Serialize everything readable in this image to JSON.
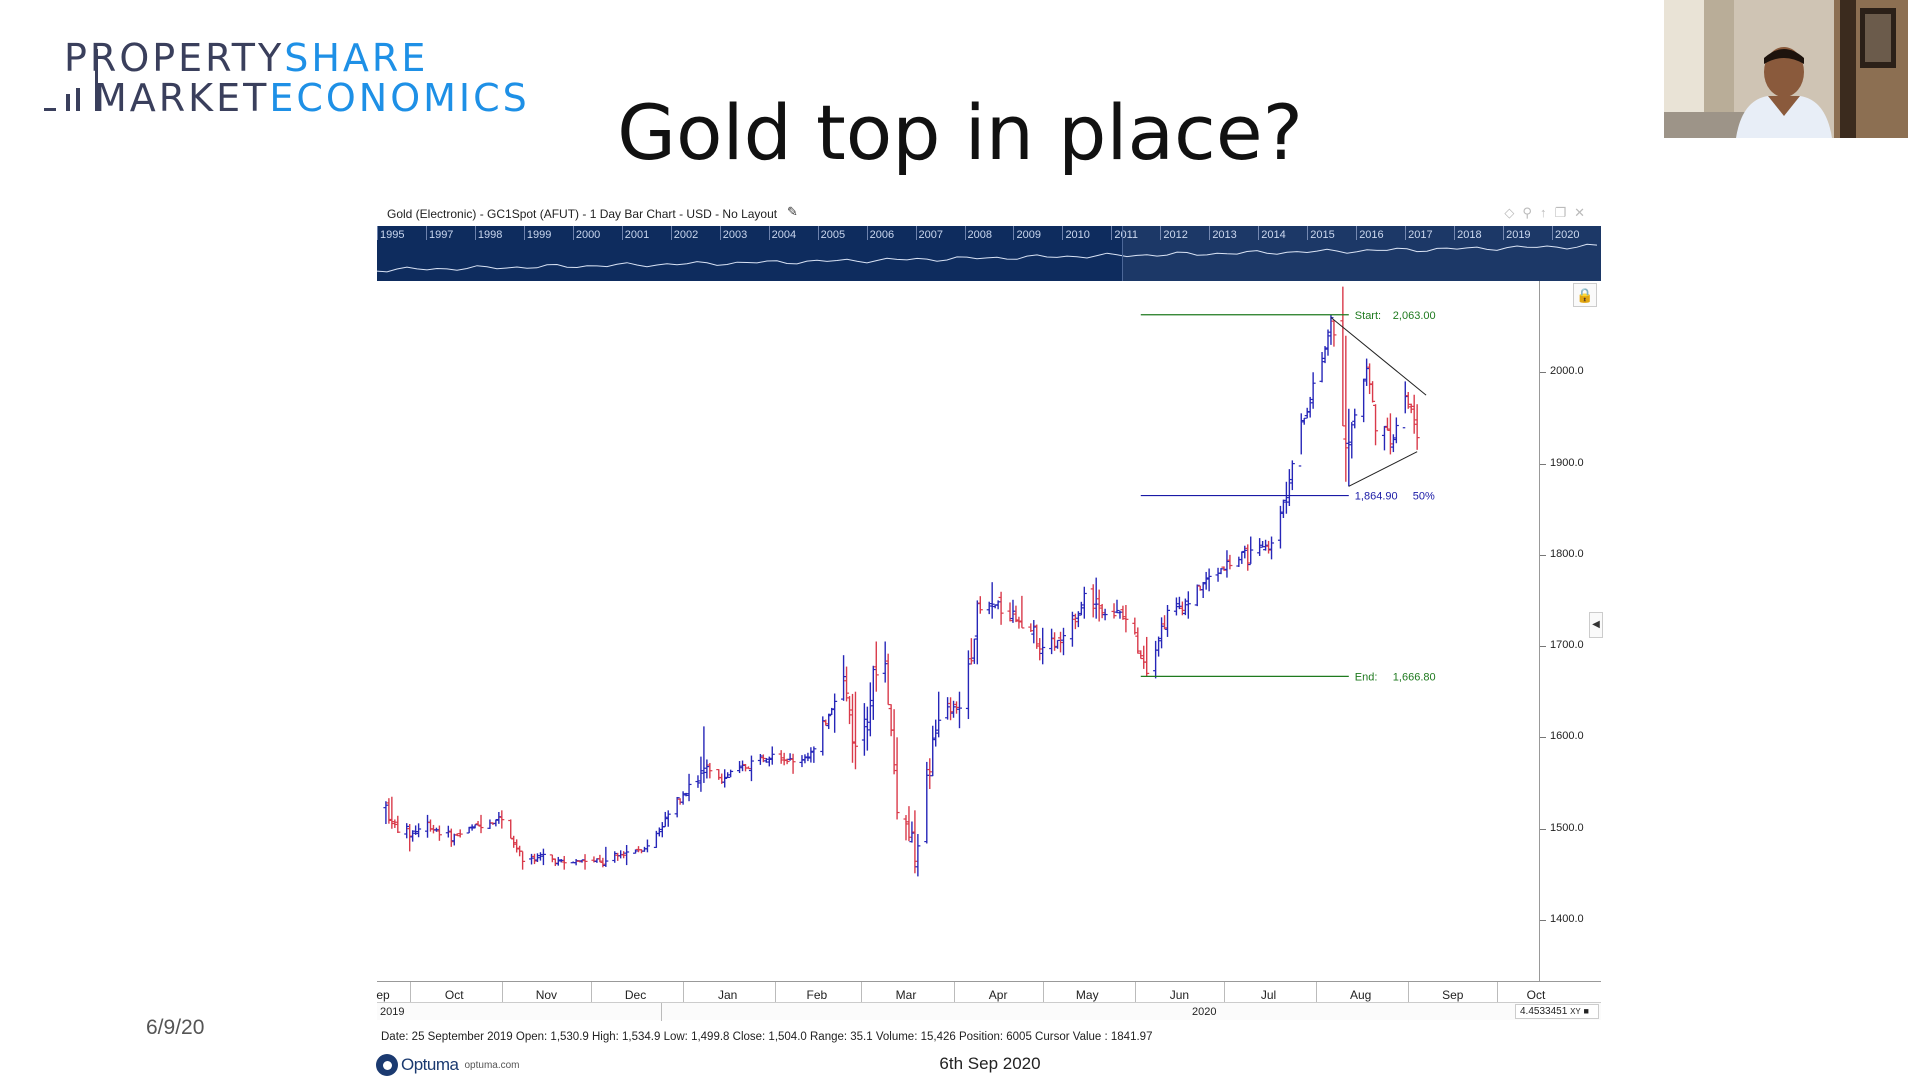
{
  "logo": {
    "line1_dark": "PROPERTY",
    "line1_blue": "SHARE",
    "line2_dark": "MARKET",
    "line2_blue": "ECONOMICS"
  },
  "slide": {
    "title": "Gold top in place?",
    "date_left": "6/9/20",
    "date_footer": "6th Sep 2020"
  },
  "chart_header": {
    "title": "Gold (Electronic) - GC1Spot (AFUT) - 1 Day Bar Chart - USD - No Layout"
  },
  "overview_years": [
    "1995",
    "1997",
    "1998",
    "1999",
    "2000",
    "2001",
    "2002",
    "2003",
    "2004",
    "2005",
    "2006",
    "2007",
    "2008",
    "2009",
    "2010",
    "2011",
    "2012",
    "2013",
    "2014",
    "2015",
    "2016",
    "2017",
    "2018",
    "2019",
    "2020"
  ],
  "status_bar": "Date: 25 September 2019 Open: 1,530.9 High: 1,534.9 Low: 1,499.8 Close: 1,504.0 Range: 35.1 Volume: 15,426 Position: 6005 Cursor Value : 1841.97",
  "cursor_value": "4.4533451",
  "cursor_unit": "XY",
  "brand": {
    "name": "Optuma",
    "site": "optuma.com"
  },
  "colors": {
    "up_bar": "#2626b8",
    "down_bar": "#d93a4a",
    "fib_line": "#1f7a1f",
    "mid_line": "#1a1aa6",
    "navy": "#0e2c5e"
  },
  "icons": {
    "lock": "lock-icon",
    "collapse": "chevron-left-icon",
    "edit": "pencil-icon"
  },
  "chart_data": {
    "type": "bar",
    "subtype": "ohlc",
    "title": "Gold (Electronic) - GC1Spot (AFUT) - 1 Day Bar Chart - USD - No Layout",
    "x_months": [
      "ep",
      "Oct",
      "Nov",
      "Dec",
      "Jan",
      "Feb",
      "Mar",
      "Apr",
      "May",
      "Jun",
      "Jul",
      "Aug",
      "Sep",
      "Oct"
    ],
    "x_years": [
      "2019",
      "2020"
    ],
    "y_ticks": [
      "1400.0",
      "1500.0",
      "1600.0",
      "1700.0",
      "1800.0",
      "1900.0",
      "2000.0"
    ],
    "ylim": [
      1333,
      2100
    ],
    "grid": false,
    "bars_approx": [
      {
        "date": "2019-09-23",
        "close": 1525,
        "high": 1530,
        "low": 1505
      },
      {
        "date": "2019-09-25",
        "close": 1504,
        "high": 1534.9,
        "low": 1499.8
      },
      {
        "date": "2019-10-01",
        "close": 1495,
        "high": 1505,
        "low": 1475
      },
      {
        "date": "2019-10-07",
        "close": 1505,
        "high": 1515,
        "low": 1490
      },
      {
        "date": "2019-10-15",
        "close": 1490,
        "high": 1500,
        "low": 1480
      },
      {
        "date": "2019-10-25",
        "close": 1505,
        "high": 1515,
        "low": 1495
      },
      {
        "date": "2019-11-01",
        "close": 1512,
        "high": 1520,
        "low": 1500
      },
      {
        "date": "2019-11-08",
        "close": 1465,
        "high": 1475,
        "low": 1455
      },
      {
        "date": "2019-11-15",
        "close": 1470,
        "high": 1478,
        "low": 1460
      },
      {
        "date": "2019-11-22",
        "close": 1462,
        "high": 1470,
        "low": 1455
      },
      {
        "date": "2019-11-29",
        "close": 1465,
        "high": 1472,
        "low": 1455
      },
      {
        "date": "2019-12-06",
        "close": 1462,
        "high": 1480,
        "low": 1458
      },
      {
        "date": "2019-12-13",
        "close": 1475,
        "high": 1482,
        "low": 1460
      },
      {
        "date": "2019-12-20",
        "close": 1480,
        "high": 1488,
        "low": 1474
      },
      {
        "date": "2019-12-27",
        "close": 1515,
        "high": 1520,
        "low": 1502
      },
      {
        "date": "2020-01-03",
        "close": 1550,
        "high": 1560,
        "low": 1530
      },
      {
        "date": "2020-01-08",
        "close": 1560,
        "high": 1612,
        "low": 1550
      },
      {
        "date": "2020-01-15",
        "close": 1555,
        "high": 1565,
        "low": 1545
      },
      {
        "date": "2020-01-24",
        "close": 1572,
        "high": 1580,
        "low": 1552
      },
      {
        "date": "2020-01-31",
        "close": 1585,
        "high": 1590,
        "low": 1570
      },
      {
        "date": "2020-02-07",
        "close": 1572,
        "high": 1582,
        "low": 1560
      },
      {
        "date": "2020-02-14",
        "close": 1585,
        "high": 1590,
        "low": 1572
      },
      {
        "date": "2020-02-21",
        "close": 1645,
        "high": 1648,
        "low": 1605
      },
      {
        "date": "2020-02-24",
        "close": 1665,
        "high": 1690,
        "low": 1640
      },
      {
        "date": "2020-02-28",
        "close": 1585,
        "high": 1650,
        "low": 1565
      },
      {
        "date": "2020-03-06",
        "close": 1675,
        "high": 1705,
        "low": 1650
      },
      {
        "date": "2020-03-09",
        "close": 1680,
        "high": 1705,
        "low": 1660
      },
      {
        "date": "2020-03-13",
        "close": 1530,
        "high": 1600,
        "low": 1510
      },
      {
        "date": "2020-03-19",
        "close": 1475,
        "high": 1520,
        "low": 1451
      },
      {
        "date": "2020-03-27",
        "close": 1625,
        "high": 1650,
        "low": 1600
      },
      {
        "date": "2020-04-03",
        "close": 1630,
        "high": 1650,
        "low": 1610
      },
      {
        "date": "2020-04-09",
        "close": 1735,
        "high": 1750,
        "low": 1680
      },
      {
        "date": "2020-04-14",
        "close": 1745,
        "high": 1770,
        "low": 1730
      },
      {
        "date": "2020-04-24",
        "close": 1730,
        "high": 1755,
        "low": 1720
      },
      {
        "date": "2020-05-01",
        "close": 1700,
        "high": 1720,
        "low": 1680
      },
      {
        "date": "2020-05-08",
        "close": 1705,
        "high": 1720,
        "low": 1690
      },
      {
        "date": "2020-05-15",
        "close": 1755,
        "high": 1765,
        "low": 1730
      },
      {
        "date": "2020-05-19",
        "close": 1745,
        "high": 1775,
        "low": 1730
      },
      {
        "date": "2020-05-29",
        "close": 1730,
        "high": 1745,
        "low": 1715
      },
      {
        "date": "2020-06-05",
        "close": 1680,
        "high": 1710,
        "low": 1667
      },
      {
        "date": "2020-06-12",
        "close": 1735,
        "high": 1745,
        "low": 1710
      },
      {
        "date": "2020-06-19",
        "close": 1750,
        "high": 1760,
        "low": 1730
      },
      {
        "date": "2020-06-26",
        "close": 1775,
        "high": 1785,
        "low": 1760
      },
      {
        "date": "2020-07-02",
        "close": 1790,
        "high": 1805,
        "low": 1775
      },
      {
        "date": "2020-07-10",
        "close": 1800,
        "high": 1820,
        "low": 1790
      },
      {
        "date": "2020-07-17",
        "close": 1810,
        "high": 1820,
        "low": 1795
      },
      {
        "date": "2020-07-22",
        "close": 1870,
        "high": 1880,
        "low": 1845
      },
      {
        "date": "2020-07-27",
        "close": 1940,
        "high": 1955,
        "low": 1910
      },
      {
        "date": "2020-07-31",
        "close": 1985,
        "high": 2000,
        "low": 1960
      },
      {
        "date": "2020-08-06",
        "close": 2055,
        "high": 2063,
        "low": 2030
      },
      {
        "date": "2020-08-11",
        "close": 1945,
        "high": 2040,
        "low": 1880
      },
      {
        "date": "2020-08-12",
        "close": 1930,
        "high": 1960,
        "low": 1874.9
      },
      {
        "date": "2020-08-18",
        "close": 2005,
        "high": 2015,
        "low": 1985
      },
      {
        "date": "2020-08-21",
        "close": 1945,
        "high": 1965,
        "low": 1920
      },
      {
        "date": "2020-08-26",
        "close": 1925,
        "high": 1955,
        "low": 1910
      },
      {
        "date": "2020-08-31",
        "close": 1975,
        "high": 1990,
        "low": 1955
      },
      {
        "date": "2020-09-04",
        "close": 1935,
        "high": 1965,
        "low": 1915
      }
    ],
    "annotations": [
      {
        "type": "fib_level",
        "label": "Start:",
        "value": "2,063.00",
        "y": 2063
      },
      {
        "type": "fib_level",
        "label": "",
        "value": "1,864.90",
        "pct": "50%",
        "y": 1864.9
      },
      {
        "type": "fib_level",
        "label": "End:",
        "value": "1,666.80",
        "y": 1666.8
      },
      {
        "type": "trendline",
        "from": {
          "date": "2020-08-06",
          "y": 2060
        },
        "to": {
          "date": "2020-09-07",
          "y": 1975
        }
      },
      {
        "type": "trendline",
        "from": {
          "date": "2020-08-12",
          "y": 1875
        },
        "to": {
          "date": "2020-09-04",
          "y": 1913
        }
      }
    ]
  }
}
